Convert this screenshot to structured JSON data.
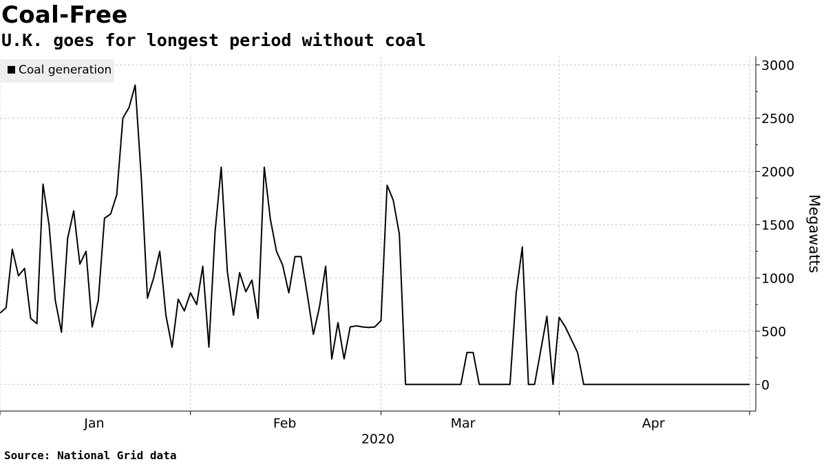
{
  "title": "Coal-Free",
  "subtitle": "U.K. goes for longest period without coal",
  "source": "Source: National Grid data",
  "legend": {
    "label": "Coal generation",
    "color": "#000000"
  },
  "chart_data": {
    "type": "line",
    "title": "Coal-Free",
    "subtitle": "U.K. goes for longest period without coal",
    "ylabel": "Megawatts",
    "xlabel": "2020",
    "ylim": [
      -250,
      3080
    ],
    "xlim": [
      "2019-12-17",
      "2020-04-18"
    ],
    "yticks": [
      0,
      500,
      1000,
      1500,
      2000,
      2500,
      3000
    ],
    "xtick_labels": [
      {
        "label": "Jan",
        "date": "2020-01-01"
      },
      {
        "label": "Feb",
        "date": "2020-02-01"
      },
      {
        "label": "Mar",
        "date": "2020-03-01"
      },
      {
        "label": "Apr",
        "date": "2020-04-01"
      }
    ],
    "month_boundaries": [
      "2019-12-17",
      "2020-01-17",
      "2020-02-17",
      "2020-03-17",
      "2020-04-17"
    ],
    "grid": true,
    "legend_position": "top-left",
    "series": [
      {
        "name": "Coal generation",
        "color": "#000000",
        "points": [
          [
            "2019-12-17",
            670
          ],
          [
            "2019-12-18",
            720
          ],
          [
            "2019-12-19",
            1270
          ],
          [
            "2019-12-20",
            1020
          ],
          [
            "2019-12-21",
            1090
          ],
          [
            "2019-12-22",
            620
          ],
          [
            "2019-12-23",
            570
          ],
          [
            "2019-12-24",
            1880
          ],
          [
            "2019-12-25",
            1490
          ],
          [
            "2019-12-26",
            790
          ],
          [
            "2019-12-27",
            490
          ],
          [
            "2019-12-28",
            1370
          ],
          [
            "2019-12-29",
            1630
          ],
          [
            "2019-12-30",
            1130
          ],
          [
            "2019-12-31",
            1250
          ],
          [
            "2020-01-01",
            540
          ],
          [
            "2020-01-02",
            790
          ],
          [
            "2020-01-03",
            1560
          ],
          [
            "2020-01-04",
            1600
          ],
          [
            "2020-01-05",
            1780
          ],
          [
            "2020-01-06",
            2500
          ],
          [
            "2020-01-07",
            2600
          ],
          [
            "2020-01-08",
            2810
          ],
          [
            "2020-01-09",
            1940
          ],
          [
            "2020-01-10",
            810
          ],
          [
            "2020-01-11",
            1000
          ],
          [
            "2020-01-12",
            1250
          ],
          [
            "2020-01-13",
            650
          ],
          [
            "2020-01-14",
            350
          ],
          [
            "2020-01-15",
            800
          ],
          [
            "2020-01-16",
            690
          ],
          [
            "2020-01-17",
            860
          ],
          [
            "2020-01-18",
            750
          ],
          [
            "2020-01-19",
            1110
          ],
          [
            "2020-01-20",
            350
          ],
          [
            "2020-01-21",
            1430
          ],
          [
            "2020-01-22",
            2040
          ],
          [
            "2020-01-23",
            1060
          ],
          [
            "2020-01-24",
            650
          ],
          [
            "2020-01-25",
            1050
          ],
          [
            "2020-01-26",
            870
          ],
          [
            "2020-01-27",
            980
          ],
          [
            "2020-01-28",
            620
          ],
          [
            "2020-01-29",
            2040
          ],
          [
            "2020-01-30",
            1550
          ],
          [
            "2020-01-31",
            1250
          ],
          [
            "2020-02-01",
            1120
          ],
          [
            "2020-02-02",
            860
          ],
          [
            "2020-02-03",
            1200
          ],
          [
            "2020-02-04",
            1200
          ],
          [
            "2020-02-05",
            850
          ],
          [
            "2020-02-06",
            470
          ],
          [
            "2020-02-07",
            730
          ],
          [
            "2020-02-08",
            1110
          ],
          [
            "2020-02-09",
            240
          ],
          [
            "2020-02-10",
            580
          ],
          [
            "2020-02-11",
            240
          ],
          [
            "2020-02-12",
            540
          ],
          [
            "2020-02-13",
            550
          ],
          [
            "2020-02-14",
            540
          ],
          [
            "2020-02-15",
            535
          ],
          [
            "2020-02-16",
            540
          ],
          [
            "2020-02-17",
            600
          ],
          [
            "2020-02-18",
            1870
          ],
          [
            "2020-02-19",
            1730
          ],
          [
            "2020-02-20",
            1410
          ],
          [
            "2020-02-21",
            0
          ],
          [
            "2020-02-22",
            0
          ],
          [
            "2020-02-23",
            0
          ],
          [
            "2020-02-24",
            0
          ],
          [
            "2020-02-25",
            0
          ],
          [
            "2020-02-26",
            0
          ],
          [
            "2020-02-27",
            0
          ],
          [
            "2020-02-28",
            0
          ],
          [
            "2020-02-29",
            0
          ],
          [
            "2020-03-01",
            0
          ],
          [
            "2020-03-02",
            300
          ],
          [
            "2020-03-03",
            300
          ],
          [
            "2020-03-04",
            0
          ],
          [
            "2020-03-05",
            0
          ],
          [
            "2020-03-06",
            0
          ],
          [
            "2020-03-07",
            0
          ],
          [
            "2020-03-08",
            0
          ],
          [
            "2020-03-09",
            0
          ],
          [
            "2020-03-10",
            860
          ],
          [
            "2020-03-11",
            1290
          ],
          [
            "2020-03-12",
            0
          ],
          [
            "2020-03-13",
            0
          ],
          [
            "2020-03-14",
            320
          ],
          [
            "2020-03-15",
            640
          ],
          [
            "2020-03-16",
            0
          ],
          [
            "2020-03-17",
            630
          ],
          [
            "2020-03-18",
            540
          ],
          [
            "2020-03-19",
            420
          ],
          [
            "2020-03-20",
            300
          ],
          [
            "2020-03-21",
            0
          ],
          [
            "2020-03-22",
            0
          ],
          [
            "2020-03-23",
            0
          ],
          [
            "2020-03-24",
            0
          ],
          [
            "2020-03-25",
            0
          ],
          [
            "2020-03-26",
            0
          ],
          [
            "2020-03-27",
            0
          ],
          [
            "2020-03-28",
            0
          ],
          [
            "2020-03-29",
            0
          ],
          [
            "2020-03-30",
            0
          ],
          [
            "2020-03-31",
            0
          ],
          [
            "2020-04-01",
            0
          ],
          [
            "2020-04-02",
            0
          ],
          [
            "2020-04-03",
            0
          ],
          [
            "2020-04-04",
            0
          ],
          [
            "2020-04-05",
            0
          ],
          [
            "2020-04-06",
            0
          ],
          [
            "2020-04-07",
            0
          ],
          [
            "2020-04-08",
            0
          ],
          [
            "2020-04-09",
            0
          ],
          [
            "2020-04-10",
            0
          ],
          [
            "2020-04-11",
            0
          ],
          [
            "2020-04-12",
            0
          ],
          [
            "2020-04-13",
            0
          ],
          [
            "2020-04-14",
            0
          ],
          [
            "2020-04-15",
            0
          ],
          [
            "2020-04-16",
            0
          ],
          [
            "2020-04-17",
            0
          ]
        ]
      }
    ]
  }
}
